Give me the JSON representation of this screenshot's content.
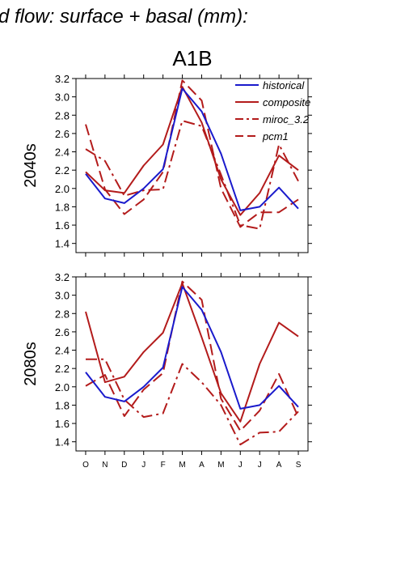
{
  "figure": {
    "suptitle": "d flow: surface + basal (mm):",
    "scenario": "A1B"
  },
  "colors": {
    "historical": "#1a1acc",
    "composite": "#b31b1b",
    "axis": "#000000"
  },
  "chart_data": [
    {
      "type": "line",
      "panel_label": "2040s",
      "categories": [
        "O",
        "N",
        "D",
        "J",
        "F",
        "M",
        "A",
        "M",
        "J",
        "J",
        "A",
        "S"
      ],
      "ylim": [
        1.3,
        3.2
      ],
      "yticks": [
        "1.4",
        "1.6",
        "1.8",
        "2.0",
        "2.2",
        "2.4",
        "2.6",
        "2.8",
        "3.0",
        "3.2"
      ],
      "grid": false,
      "legend_position": "top-right",
      "series": [
        {
          "name": "historical",
          "style": "solid",
          "color": "#1a1acc",
          "values": [
            2.16,
            1.89,
            1.84,
            2.0,
            2.21,
            3.09,
            2.84,
            2.38,
            1.76,
            1.8,
            2.01,
            1.78
          ]
        },
        {
          "name": "composite",
          "style": "solid",
          "color": "#b31b1b",
          "values": [
            2.18,
            1.98,
            1.95,
            2.25,
            2.48,
            3.11,
            2.72,
            2.1,
            1.71,
            1.95,
            2.36,
            2.2
          ]
        },
        {
          "name": "miroc_3.2",
          "style": "dashdot",
          "color": "#b31b1b",
          "values": [
            2.43,
            2.3,
            1.92,
            1.98,
            1.99,
            2.74,
            2.68,
            2.15,
            1.6,
            1.56,
            2.48,
            2.08
          ]
        },
        {
          "name": "pcm1",
          "style": "dashed",
          "color": "#b31b1b",
          "values": [
            2.7,
            1.99,
            1.72,
            1.88,
            2.18,
            3.18,
            2.96,
            2.0,
            1.58,
            1.74,
            1.74,
            1.88
          ]
        }
      ]
    },
    {
      "type": "line",
      "panel_label": "2080s",
      "categories": [
        "O",
        "N",
        "D",
        "J",
        "F",
        "M",
        "A",
        "M",
        "J",
        "J",
        "A",
        "S"
      ],
      "ylim": [
        1.3,
        3.2
      ],
      "yticks": [
        "1.4",
        "1.6",
        "1.8",
        "2.0",
        "2.2",
        "2.4",
        "2.6",
        "2.8",
        "3.0",
        "3.2"
      ],
      "grid": false,
      "series": [
        {
          "name": "historical",
          "style": "solid",
          "color": "#1a1acc",
          "values": [
            2.16,
            1.89,
            1.84,
            2.0,
            2.21,
            3.09,
            2.84,
            2.38,
            1.76,
            1.8,
            2.01,
            1.78
          ]
        },
        {
          "name": "composite",
          "style": "solid",
          "color": "#b31b1b",
          "values": [
            2.82,
            2.05,
            2.11,
            2.38,
            2.59,
            3.13,
            2.54,
            1.93,
            1.62,
            2.25,
            2.7,
            2.55
          ]
        },
        {
          "name": "miroc_3.2",
          "style": "dashdot",
          "color": "#b31b1b",
          "values": [
            2.3,
            2.3,
            1.86,
            1.67,
            1.71,
            2.25,
            2.05,
            1.8,
            1.37,
            1.5,
            1.51,
            1.73
          ]
        },
        {
          "name": "pcm1",
          "style": "dashed",
          "color": "#b31b1b",
          "values": [
            2.01,
            2.13,
            1.68,
            1.97,
            2.15,
            3.15,
            2.95,
            1.87,
            1.52,
            1.74,
            2.14,
            1.67
          ]
        }
      ]
    }
  ]
}
